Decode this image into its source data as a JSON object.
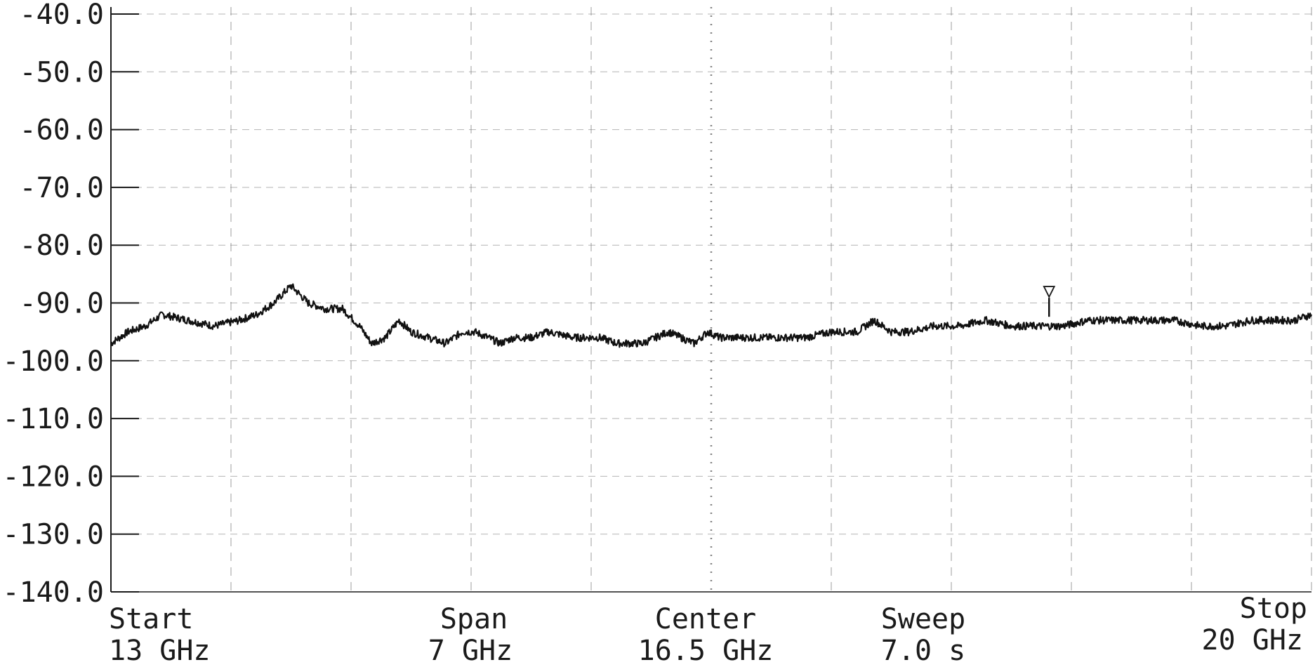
{
  "chart_data": {
    "type": "line",
    "title": "",
    "xlabel": "",
    "ylabel": "",
    "xlim": [
      13,
      20
    ],
    "ylim": [
      -140,
      -40
    ],
    "x_unit": "GHz",
    "grid": true,
    "x_gridlines": 10,
    "y_ticks": [
      "-40.0",
      "-50.0",
      "-60.0",
      "-70.0",
      "-80.0",
      "-90.0",
      "-100.0",
      "-110.0",
      "-120.0",
      "-130.0",
      "-140.0"
    ],
    "series": [
      {
        "x": [
          13.0,
          13.1,
          13.2,
          13.3,
          13.45,
          13.6,
          13.75,
          13.85,
          13.95,
          14.05,
          14.15,
          14.25,
          14.35,
          14.45,
          14.52,
          14.6,
          14.68,
          14.75,
          14.85,
          14.95,
          15.05,
          15.12,
          15.2,
          15.27,
          15.35,
          15.45,
          15.55,
          15.7,
          15.8,
          15.85,
          15.95,
          16.1,
          16.25,
          16.4,
          16.48,
          16.55,
          16.65,
          16.75,
          16.9,
          17.05,
          17.2,
          17.35,
          17.45,
          17.55,
          17.65,
          17.8,
          17.95,
          18.1,
          18.25,
          18.4,
          18.55,
          18.7,
          18.85,
          19.0,
          19.2,
          19.35,
          19.5,
          19.65,
          19.8,
          19.9,
          20.0
        ],
        "y": [
          -97,
          -95,
          -94,
          -92,
          -93,
          -94,
          -93,
          -92,
          -90,
          -87,
          -90,
          -91,
          -91,
          -94,
          -97,
          -96,
          -93,
          -95,
          -96,
          -97,
          -95,
          -95,
          -96,
          -97,
          -96,
          -96,
          -95,
          -96,
          -96,
          -96,
          -97,
          -97,
          -95,
          -97,
          -95,
          -96,
          -96,
          -96,
          -96,
          -96,
          -95,
          -95,
          -93,
          -95,
          -95,
          -94,
          -94,
          -93,
          -94,
          -94,
          -94,
          -93,
          -93,
          -93,
          -93,
          -94,
          -94,
          -93,
          -93,
          -93,
          -92
        ]
      }
    ],
    "marker": {
      "x": 18.47,
      "y": -93,
      "symbol": "▽"
    },
    "settings": {
      "start_label": "Start",
      "start_value": "13 GHz",
      "span_label": "Span",
      "span_value": "7 GHz",
      "center_label": "Center",
      "center_value": "16.5 GHz",
      "sweep_label": "Sweep",
      "sweep_value": "7.0 s",
      "stop_label": "Stop",
      "stop_value": "20 GHz"
    }
  },
  "colors": {
    "trace": "#111111",
    "grid": "#777777",
    "text": "#1a1a1a"
  }
}
